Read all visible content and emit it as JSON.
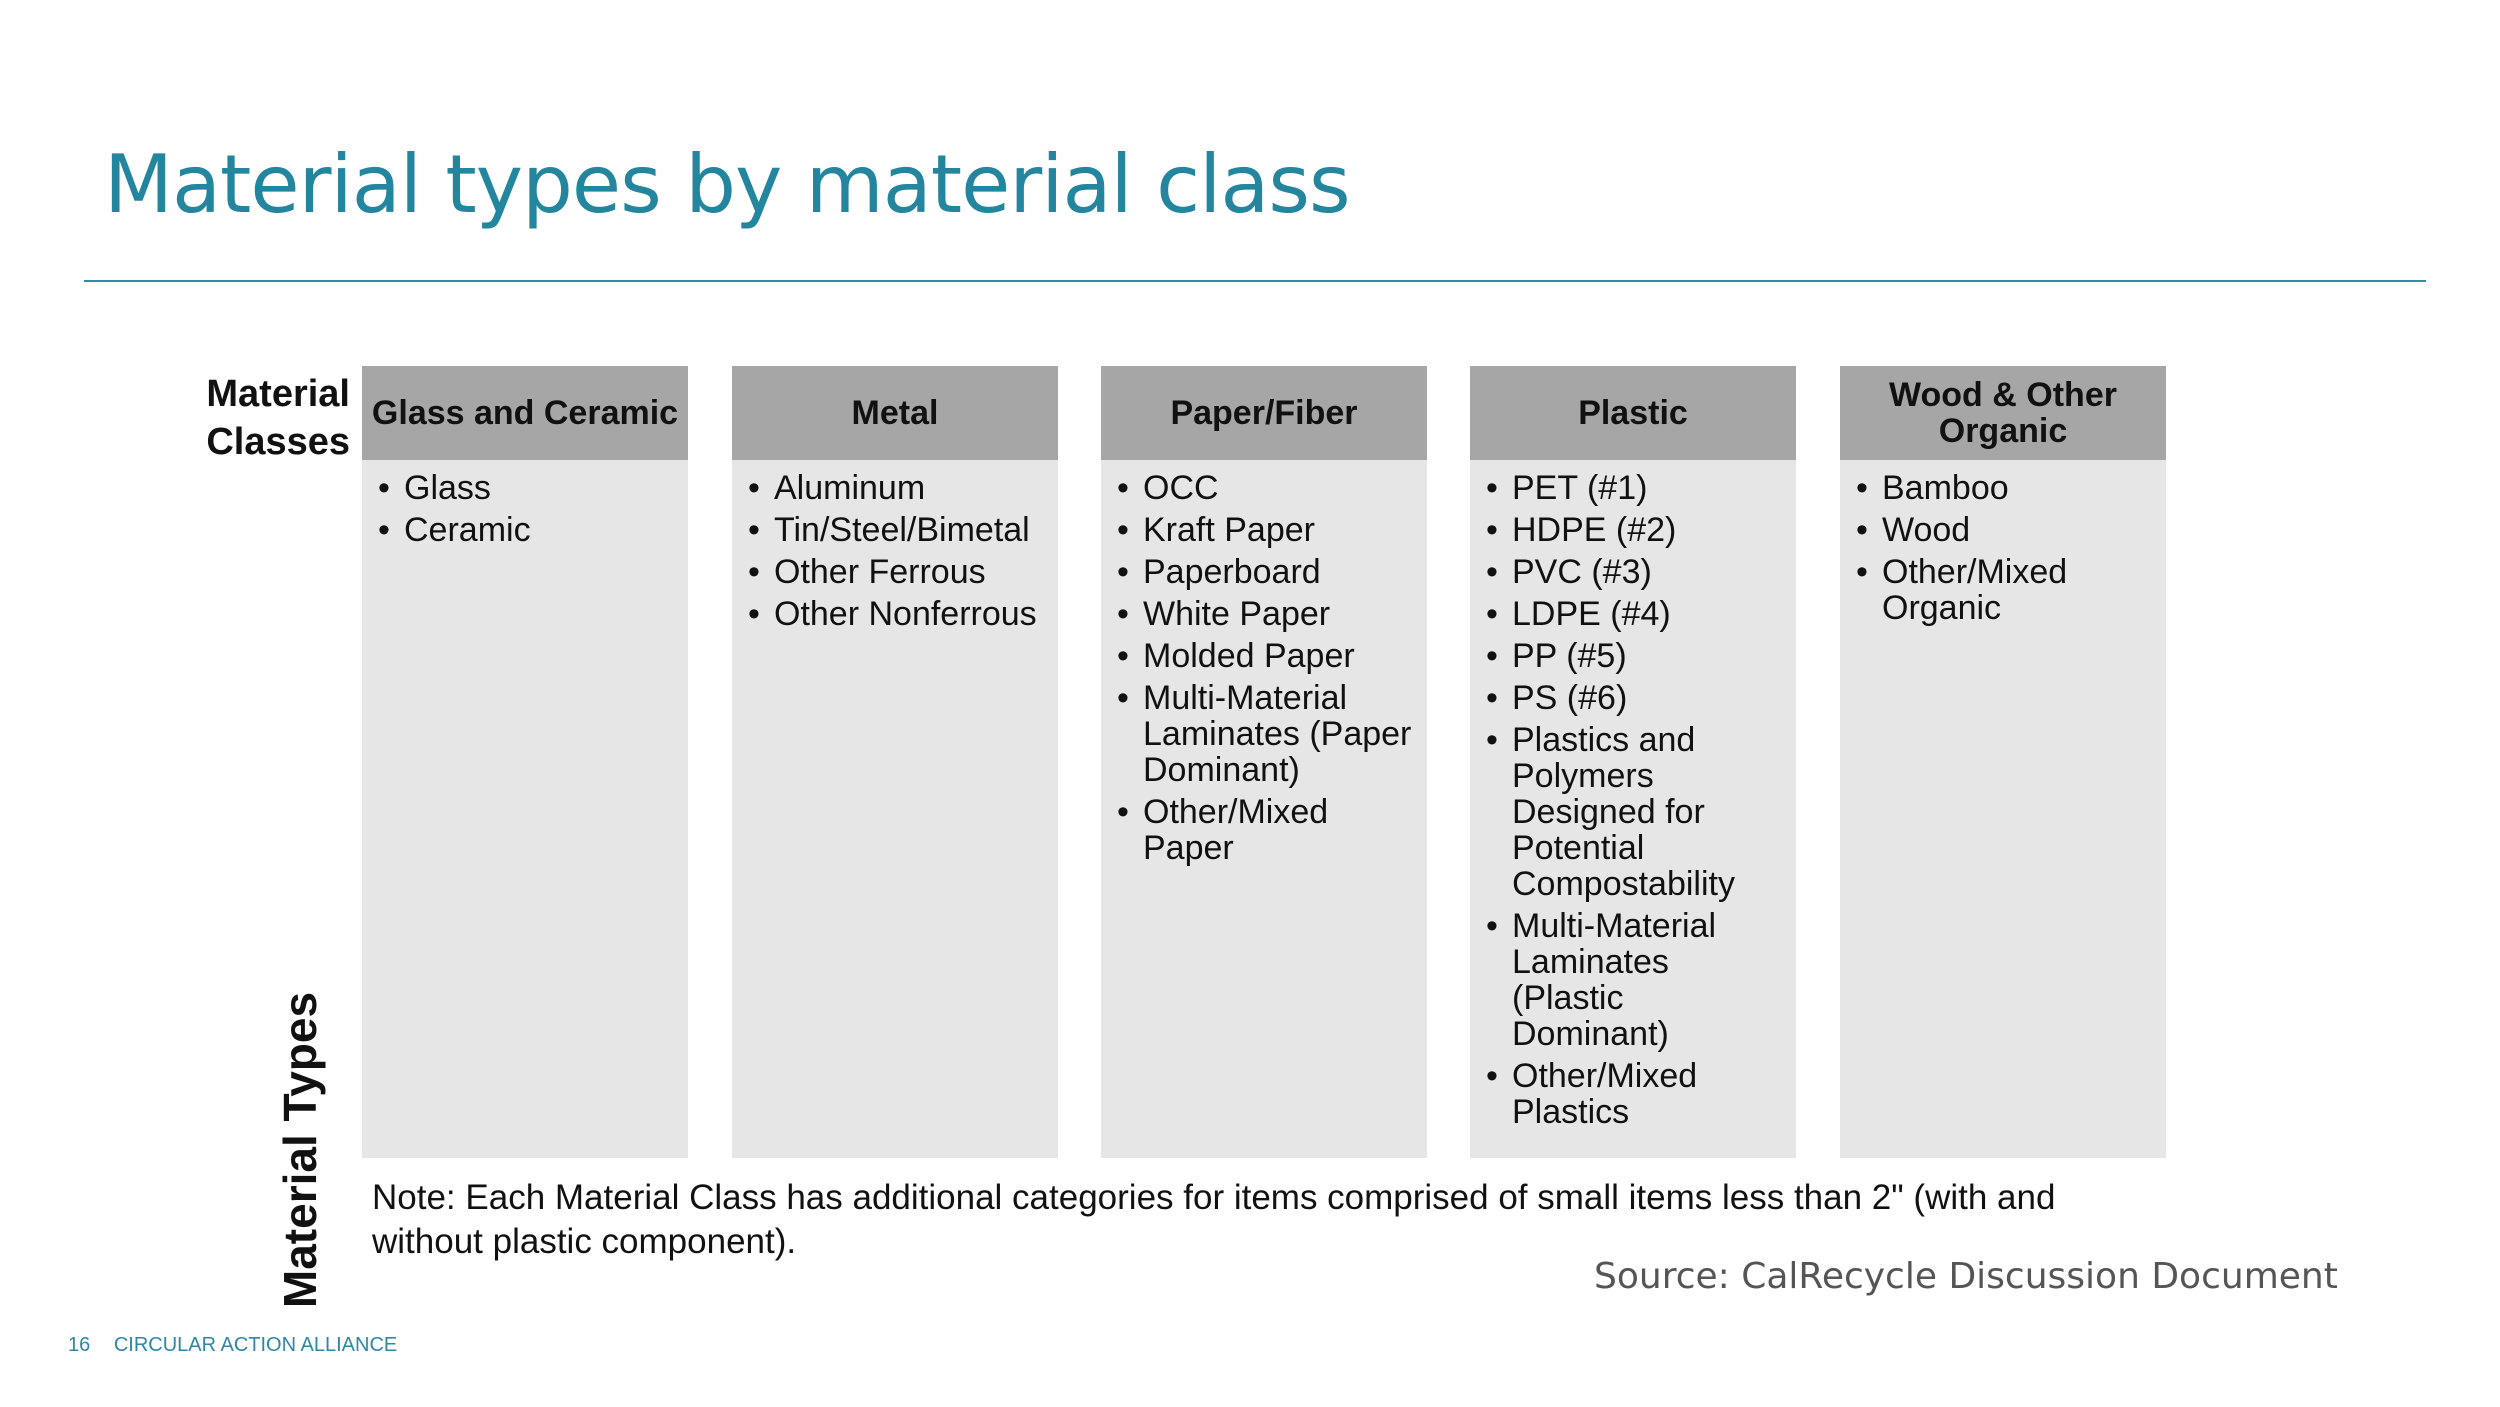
{
  "title": "Material types by material class",
  "row_label": {
    "line1": "Material",
    "line2": "Classes"
  },
  "side_label": "Material Types",
  "columns": [
    {
      "header": "Glass and Ceramic",
      "items": [
        "Glass",
        "Ceramic"
      ]
    },
    {
      "header": "Metal",
      "items": [
        "Aluminum",
        "Tin/Steel/Bimetal",
        "Other Ferrous",
        "Other Nonferrous"
      ]
    },
    {
      "header": "Paper/Fiber",
      "items": [
        "OCC",
        "Kraft Paper",
        "Paperboard",
        "White Paper",
        "Molded Paper",
        "Multi-Material Laminates (Paper Dominant)",
        "Other/Mixed Paper"
      ]
    },
    {
      "header": "Plastic",
      "items": [
        "PET (#1)",
        "HDPE (#2)",
        "PVC (#3)",
        "LDPE (#4)",
        "PP (#5)",
        "PS (#6)",
        "Plastics and Polymers Designed for Potential Compostability",
        "Multi-Material Laminates (Plastic Dominant)",
        "Other/Mixed Plastics"
      ]
    },
    {
      "header": "Wood & Other Organic",
      "items": [
        "Bamboo",
        "Wood",
        "Other/Mixed Organic"
      ]
    }
  ],
  "note": "Note: Each Material Class has additional categories for items comprised of small items less than 2\" (with and without plastic component).",
  "source": "Source: CalRecycle Discussion Document",
  "footer": {
    "page": "16",
    "brand": "CIRCULAR ACTION ALLIANCE"
  }
}
